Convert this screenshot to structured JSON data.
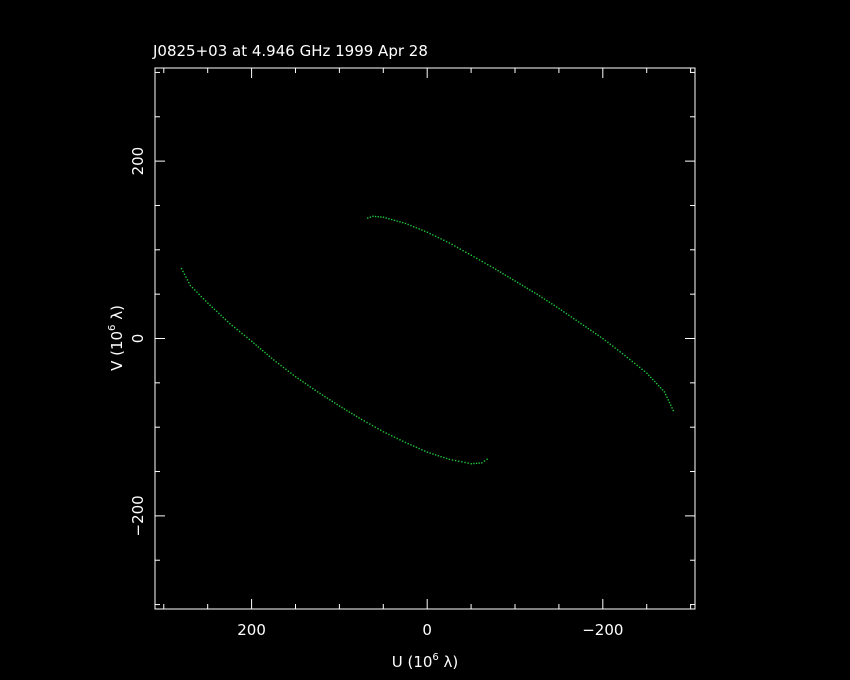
{
  "chart_data": {
    "type": "scatter",
    "title": "J0825+03 at 4.946 GHz 1999 Apr 28",
    "xlabel": "U (10",
    "xlabel_exp": "6",
    "xlabel_tail": " λ)",
    "ylabel": "V (10",
    "ylabel_exp": "6",
    "ylabel_tail": " λ)",
    "xlim": [
      310,
      -305
    ],
    "ylim": [
      -305,
      305
    ],
    "x_ticks": [
      200,
      0,
      -200
    ],
    "x_tick_labels": [
      "200",
      "0",
      "−200"
    ],
    "y_ticks": [
      -200,
      0,
      200
    ],
    "y_tick_labels": [
      "−200",
      "0",
      "200"
    ],
    "x_minor_step": 100,
    "y_minor_step": 100,
    "grid": false,
    "point_color": "#1fc73a",
    "frame_color": "#ffffff",
    "series": [
      {
        "values": [
          [
            280,
            79
          ],
          [
            270,
            60
          ],
          [
            250,
            40
          ],
          [
            225,
            17
          ],
          [
            200,
            -3
          ],
          [
            175,
            -24
          ],
          [
            150,
            -43
          ],
          [
            125,
            -60
          ],
          [
            100,
            -76
          ],
          [
            75,
            -91
          ],
          [
            50,
            -105
          ],
          [
            25,
            -117
          ],
          [
            0,
            -128
          ],
          [
            -25,
            -136
          ],
          [
            -50,
            -141
          ],
          [
            -62,
            -140
          ],
          [
            -68,
            -136
          ]
        ]
      },
      {
        "values": [
          [
            68,
            136
          ],
          [
            62,
            138
          ],
          [
            50,
            137
          ],
          [
            25,
            130
          ],
          [
            0,
            120
          ],
          [
            -25,
            108
          ],
          [
            -50,
            94
          ],
          [
            -75,
            80
          ],
          [
            -100,
            65
          ],
          [
            -125,
            50
          ],
          [
            -150,
            34
          ],
          [
            -175,
            17
          ],
          [
            -200,
            0
          ],
          [
            -225,
            -19
          ],
          [
            -250,
            -39
          ],
          [
            -270,
            -60
          ],
          [
            -280,
            -81
          ]
        ]
      }
    ]
  }
}
